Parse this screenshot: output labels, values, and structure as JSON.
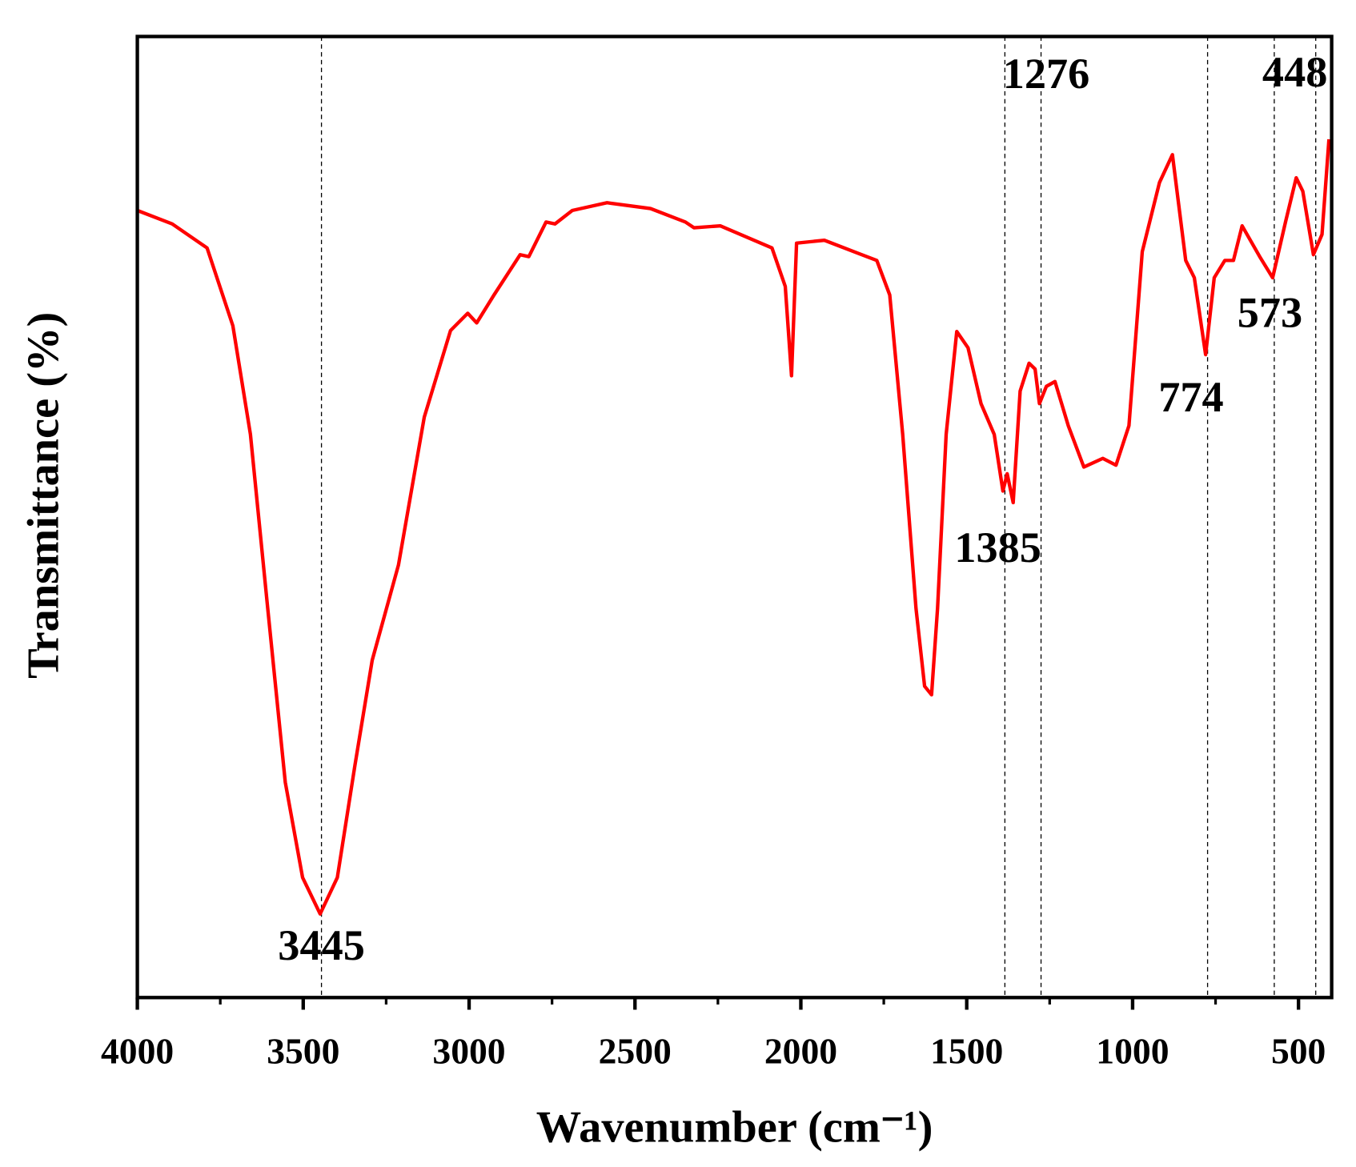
{
  "chart_data": {
    "type": "line",
    "xlabel": "Wavenumber (cm⁻¹)",
    "ylabel": "Transmittance (%)",
    "x": [
      4000,
      3895,
      3790,
      3712,
      3659,
      3607,
      3554,
      3502,
      3449,
      3397,
      3344,
      3292,
      3213,
      3135,
      3056,
      3004,
      2977,
      2925,
      2846,
      2820,
      2768,
      2741,
      2689,
      2584,
      2453,
      2348,
      2322,
      2243,
      2087,
      2047,
      2028,
      2013,
      1929,
      1824,
      1771,
      1732,
      1693,
      1653,
      1627,
      1606,
      1588,
      1562,
      1530,
      1496,
      1457,
      1417,
      1391,
      1378,
      1360,
      1339,
      1312,
      1294,
      1281,
      1260,
      1234,
      1194,
      1147,
      1090,
      1050,
      1011,
      971,
      919,
      880,
      840,
      814,
      780,
      754,
      722,
      696,
      670,
      617,
      578,
      539,
      507,
      487,
      455,
      429,
      408
    ],
    "values": [
      81.9,
      80.5,
      78.0,
      69.9,
      58.6,
      40.5,
      22.4,
      12.5,
      8.7,
      12.5,
      24.2,
      35.1,
      45.0,
      60.4,
      69.4,
      71.2,
      70.2,
      73.1,
      77.3,
      77.1,
      80.7,
      80.5,
      81.9,
      82.7,
      82.1,
      80.7,
      80.1,
      80.3,
      78.0,
      74.0,
      64.7,
      78.5,
      78.8,
      77.4,
      76.7,
      73.1,
      58.6,
      40.5,
      32.4,
      31.5,
      40.5,
      58.6,
      69.3,
      67.6,
      61.8,
      58.6,
      52.7,
      54.5,
      51.5,
      63.1,
      66.0,
      65.4,
      61.8,
      63.6,
      64.1,
      59.5,
      55.2,
      56.1,
      55.4,
      59.5,
      77.6,
      84.8,
      87.7,
      76.7,
      74.9,
      66.9,
      74.9,
      76.7,
      76.7,
      80.3,
      77.1,
      74.9,
      80.7,
      85.3,
      83.9,
      77.3,
      79.4,
      89.3
    ],
    "color": "#ff0000",
    "peaks": [
      3445,
      1385,
      1276,
      774,
      573,
      448
    ],
    "xlim": [
      4000,
      400
    ],
    "xticks": [
      4000,
      3500,
      3000,
      2500,
      2000,
      1500,
      1000,
      500
    ],
    "ylim": [
      0,
      100
    ]
  }
}
